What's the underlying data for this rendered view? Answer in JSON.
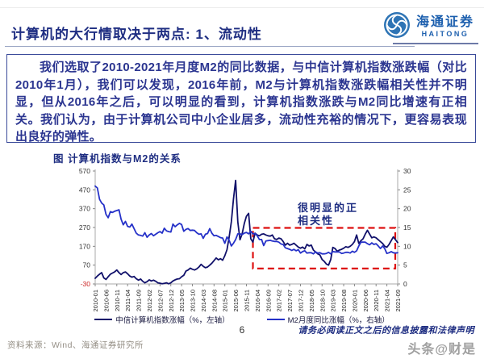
{
  "slide": {
    "title": "计算机的大行情取决于两点: 1、流动性",
    "logo": {
      "name_cn": "海通证券",
      "name_en": "HAITONG"
    },
    "body_text": "我们选取了2010-2021年月度M2的同比数据，与中信计算机指数涨跌幅（对比2010年1月），我们可以发现，2016年前，M2与计算机指数涨跌幅相关性并不明显，但从2016年之后，可以明显的看到，计算机指数涨跌与M2同比增速有正相关。我们认为，由于计算机公司中小企业居多，流动性充裕的情况下，更容易表现出良好的弹性。",
    "chart_caption": "图 计算机指数与M2的关系",
    "page_number": "6",
    "disclaimer": "请务必阅读正文之后的信息披露和法律声明",
    "source_note": "资料来源：Wind、海通证券研究所",
    "watermark": "头条@财是"
  },
  "colors": {
    "title_navy": "#1f2e82",
    "logo_blue": "#1c5fae",
    "index_line": "#10106a",
    "m2_line": "#2531c8",
    "annotation_red": "#dd1111",
    "negative_tick": "#cc2222"
  },
  "chart_data": {
    "type": "line",
    "title": "图 计算机指数与M2的关系",
    "x_start": "2010-01",
    "x_end": "2021-09",
    "x_tick_step_months": 5,
    "x_tick_labels": [
      "2010-01",
      "2010-06",
      "2010-11",
      "2011-04",
      "2011-09",
      "2012-02",
      "2012-07",
      "2012-12",
      "2013-05",
      "2013-10",
      "2014-03",
      "2014-08",
      "2015-01",
      "2015-06",
      "2015-11",
      "2016-04",
      "2016-09",
      "2017-02",
      "2017-07",
      "2017-12",
      "2018-05",
      "2018-10",
      "2019-03",
      "2019-08",
      "2020-01",
      "2020-06",
      "2020-11",
      "2021-04",
      "2021-09"
    ],
    "left_axis": {
      "min": -30,
      "max": 570,
      "ticks": [
        570,
        470,
        370,
        270,
        170,
        70,
        -30
      ]
    },
    "right_axis": {
      "min": 0,
      "max": 30,
      "ticks": [
        30,
        25,
        20,
        15,
        10,
        5,
        0
      ]
    },
    "series": [
      {
        "name": "中信计算机指数涨幅（%，左轴）",
        "axis": "left",
        "color": "#10106a",
        "values": [
          0,
          12,
          22,
          30,
          2,
          -6,
          8,
          22,
          28,
          34,
          44,
          30,
          20,
          30,
          34,
          24,
          12,
          6,
          10,
          -2,
          -10,
          -4,
          -16,
          -24,
          -18,
          -8,
          -14,
          -10,
          -16,
          -24,
          -26,
          -29,
          -27,
          -24,
          -29,
          -24,
          -14,
          -8,
          -4,
          -2,
          8,
          16,
          38,
          44,
          54,
          48,
          44,
          50,
          60,
          74,
          64,
          56,
          60,
          70,
          80,
          94,
          108,
          98,
          104,
          96,
          120,
          152,
          220,
          300,
          420,
          520,
          300,
          205,
          235,
          290,
          330,
          345,
          210,
          192,
          240,
          230,
          226,
          234,
          236,
          230,
          226,
          224,
          230,
          210,
          206,
          214,
          210,
          196,
          176,
          186,
          176,
          180,
          186,
          176,
          166,
          160,
          166,
          156,
          180,
          172,
          176,
          150,
          140,
          130,
          124,
          100,
          90,
          76,
          70,
          100,
          164,
          158,
          144,
          150,
          154,
          160,
          168,
          164,
          170,
          180,
          195,
          230,
          185,
          200,
          210,
          235,
          255,
          235,
          215,
          220,
          215,
          205,
          195,
          185,
          170,
          165,
          180,
          200,
          220,
          205,
          190
        ]
      },
      {
        "name": "M2月度同比涨幅（%，右轴）",
        "axis": "right",
        "color": "#2531c8",
        "values": [
          26.0,
          25.5,
          22.5,
          21.5,
          21.0,
          18.5,
          17.6,
          19.2,
          19.0,
          19.3,
          19.5,
          19.7,
          17.2,
          15.7,
          16.6,
          15.3,
          15.1,
          15.9,
          14.7,
          13.5,
          13.0,
          12.9,
          12.7,
          13.6,
          12.4,
          13.0,
          13.4,
          12.8,
          13.2,
          13.6,
          13.9,
          13.5,
          14.8,
          14.1,
          13.9,
          13.8,
          15.9,
          15.2,
          15.7,
          16.1,
          15.8,
          14.0,
          14.5,
          14.7,
          14.2,
          14.3,
          14.2,
          13.6,
          13.2,
          13.3,
          12.1,
          13.2,
          13.4,
          14.7,
          13.5,
          12.8,
          12.9,
          12.6,
          12.3,
          12.2,
          10.8,
          12.5,
          11.6,
          10.1,
          10.8,
          11.8,
          13.3,
          13.3,
          13.1,
          13.5,
          13.7,
          13.3,
          14.0,
          13.3,
          13.4,
          12.8,
          11.8,
          11.8,
          10.2,
          11.4,
          11.5,
          11.6,
          11.4,
          11.3,
          11.3,
          11.1,
          10.6,
          10.5,
          9.6,
          9.4,
          9.2,
          8.9,
          9.2,
          8.8,
          9.1,
          8.2,
          8.6,
          8.8,
          8.2,
          8.3,
          8.3,
          8.0,
          8.5,
          8.2,
          8.3,
          8.0,
          8.0,
          8.1,
          8.4,
          8.0,
          8.6,
          8.5,
          8.5,
          8.5,
          8.1,
          8.2,
          8.4,
          8.4,
          8.2,
          8.7,
          8.4,
          8.8,
          10.1,
          11.1,
          11.1,
          11.1,
          10.7,
          10.4,
          10.9,
          10.5,
          10.7,
          10.1,
          9.4,
          10.1,
          9.4,
          8.1,
          8.3,
          8.6,
          8.3,
          8.2,
          8.3
        ]
      }
    ],
    "annotation": {
      "text_lines": [
        "很明显的正",
        "相关性"
      ]
    },
    "annotation_box": {
      "x_start_index": 73,
      "x_end_index": 140,
      "y_top": 14.9,
      "y_bottom": 4.1,
      "axis": "right",
      "color": "#dd1111"
    },
    "legend_position": "bottom",
    "grid": false
  }
}
